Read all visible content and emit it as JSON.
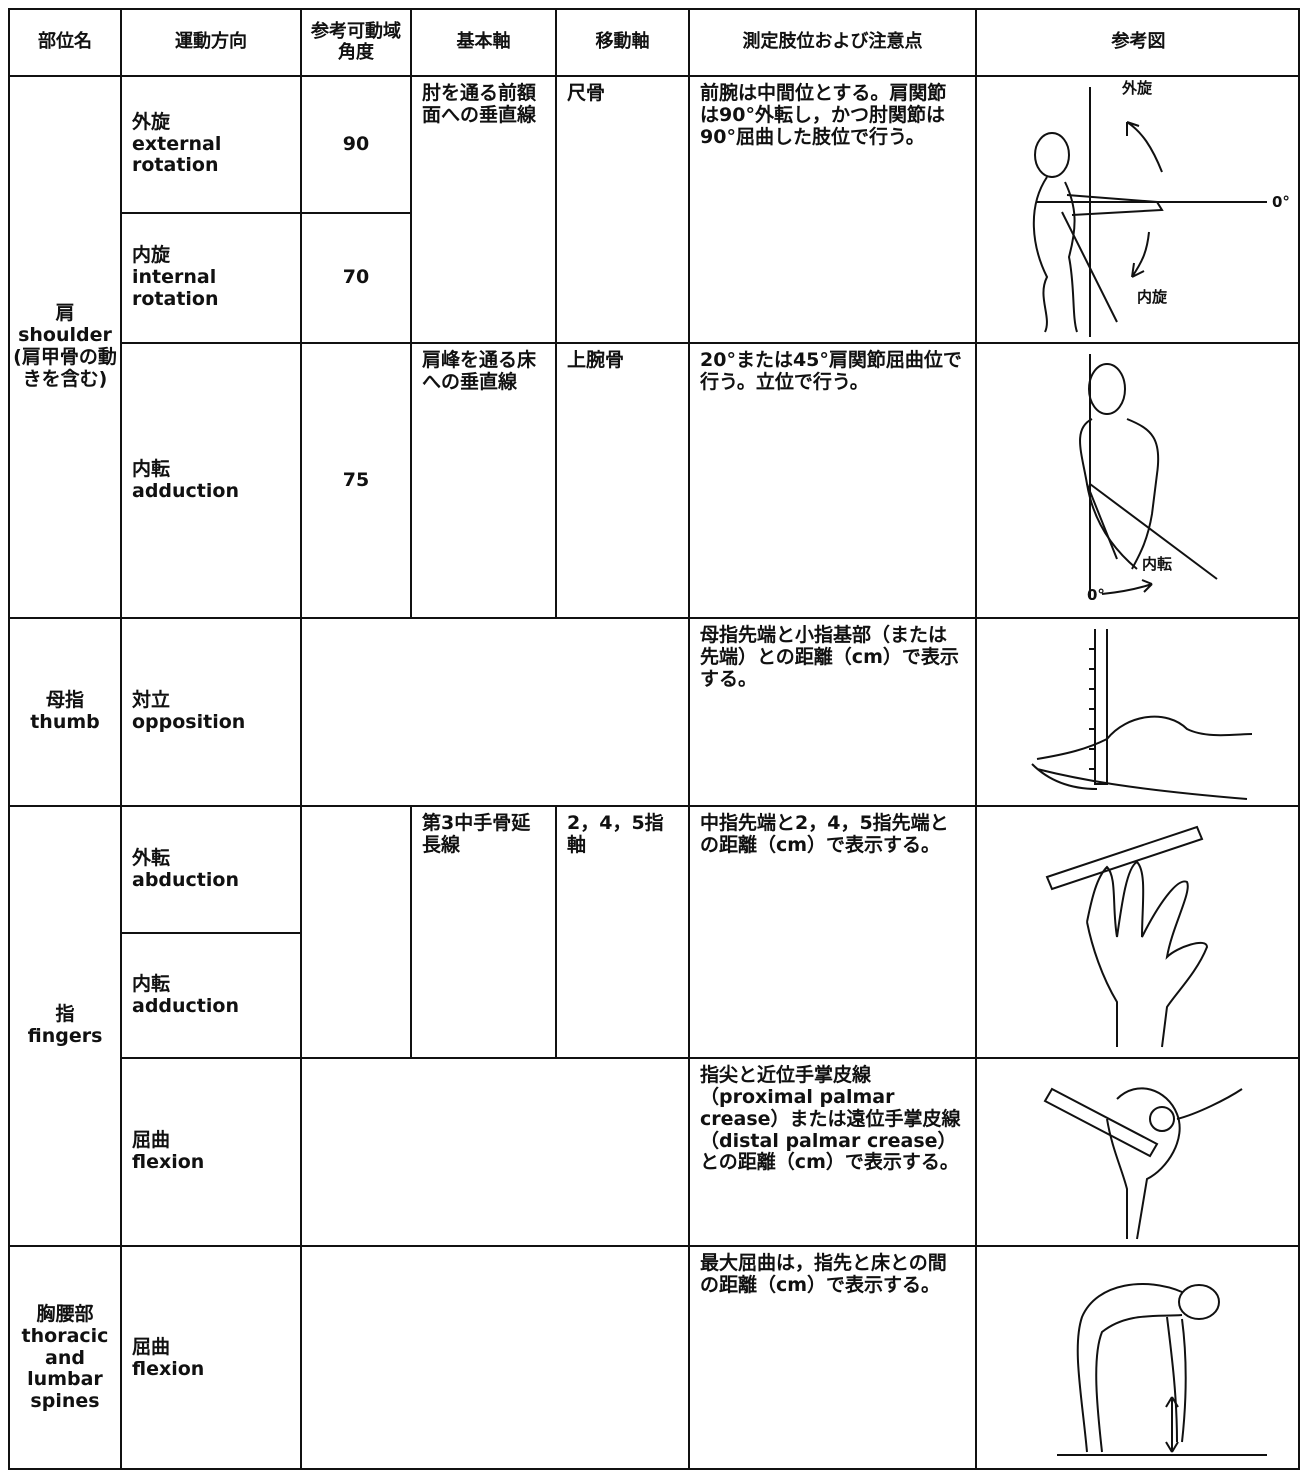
{
  "header": [
    "部位名",
    "運動方向",
    "参考可動域角度",
    "基本軸",
    "移動軸",
    "測定肢位および注意点",
    "参考図"
  ],
  "regions": [
    {
      "ja": "肩",
      "en": "shoulder",
      "note": "(肩甲骨の動きを含む)"
    },
    {
      "ja": "母指",
      "en": "thumb"
    },
    {
      "ja": "指",
      "en": "fingers"
    },
    {
      "ja": "胸腰部",
      "en": "thoracic and lumbar spines"
    }
  ],
  "movements": [
    {
      "ja": "外旋",
      "en": "external rotation",
      "rom": 90
    },
    {
      "ja": "内旋",
      "en": "internal rotation",
      "rom": 70
    },
    {
      "ja": "内転",
      "en": "adduction",
      "rom": 75
    },
    {
      "ja": "対立",
      "en": "opposition"
    },
    {
      "ja": "外転",
      "en": "abduction"
    },
    {
      "ja": "内転",
      "en": "adduction"
    },
    {
      "ja": "屈曲",
      "en": "flexion"
    },
    {
      "ja": "屈曲",
      "en": "flexion"
    }
  ],
  "basic_axis": [
    "肘を通る前額面への垂直線",
    "肩峰を通る床への垂直線",
    "第3中手骨延長線"
  ],
  "moving_axis": [
    "尺骨",
    "上腕骨",
    "2，4，5指軸"
  ],
  "notes": [
    "前腕は中間位とする。肩関節は90°外転し，かつ肘関節は90°屈曲した肢位で行う。",
    "20°または45°肩関節屈曲位で行う。立位で行う。",
    "母指先端と小指基部（または先端）との距離（cm）で表示する。",
    "中指先端と2，4，5指先端との距離（cm）で表示する。",
    "指尖と近位手掌皮線（proximal palmar crease）または遠位手掌皮線（distal palmar crease）との距離（cm）で表示する。",
    "最大屈曲は，指先と床との間の距離（cm）で表示する。"
  ],
  "figure_labels": [
    "外旋",
    "0°",
    "内旋",
    "内転",
    "0°"
  ]
}
